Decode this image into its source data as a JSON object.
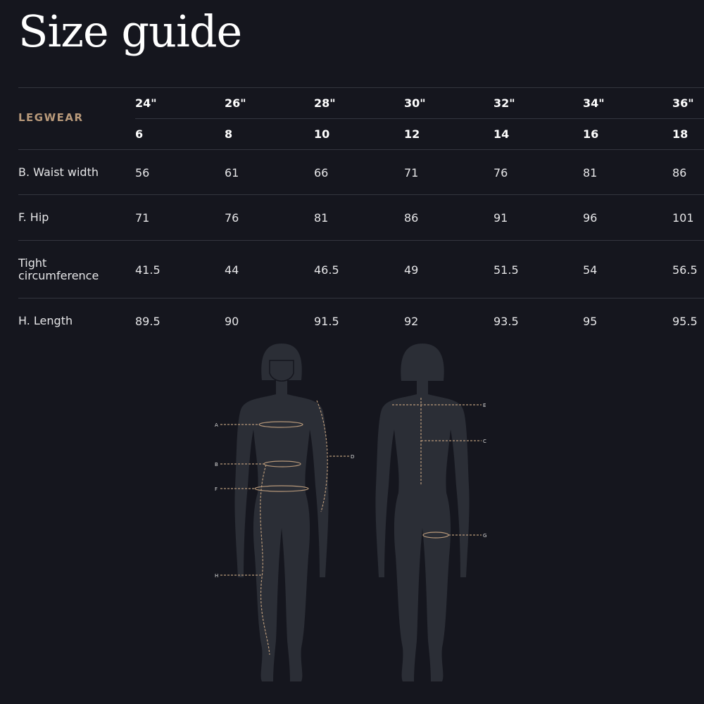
{
  "page_title": "Size guide",
  "table": {
    "section_label": "LEGWEAR",
    "waist_sizes": [
      "24\"",
      "26\"",
      "28\"",
      "30\"",
      "32\"",
      "34\"",
      "36\""
    ],
    "uk_sizes": [
      "6",
      "8",
      "10",
      "12",
      "14",
      "16",
      "18"
    ],
    "rows": [
      {
        "label": "B. Waist width",
        "values": [
          "56",
          "61",
          "66",
          "71",
          "76",
          "81",
          "86"
        ]
      },
      {
        "label": "F. Hip",
        "values": [
          "71",
          "76",
          "81",
          "86",
          "91",
          "96",
          "101"
        ]
      },
      {
        "label": "Tight circumference",
        "values": [
          "41.5",
          "44",
          "46.5",
          "49",
          "51.5",
          "54",
          "56.5"
        ]
      },
      {
        "label": "H. Length",
        "values": [
          "89.5",
          "90",
          "91.5",
          "92",
          "93.5",
          "95",
          "95.5"
        ]
      }
    ]
  },
  "diagram": {
    "front_markers": [
      "A",
      "B",
      "F",
      "H",
      "D"
    ],
    "back_markers": [
      "E",
      "C",
      "G"
    ]
  },
  "colors": {
    "background": "#15161e",
    "accent": "#b8997a",
    "silhouette": "#2b2e36"
  }
}
